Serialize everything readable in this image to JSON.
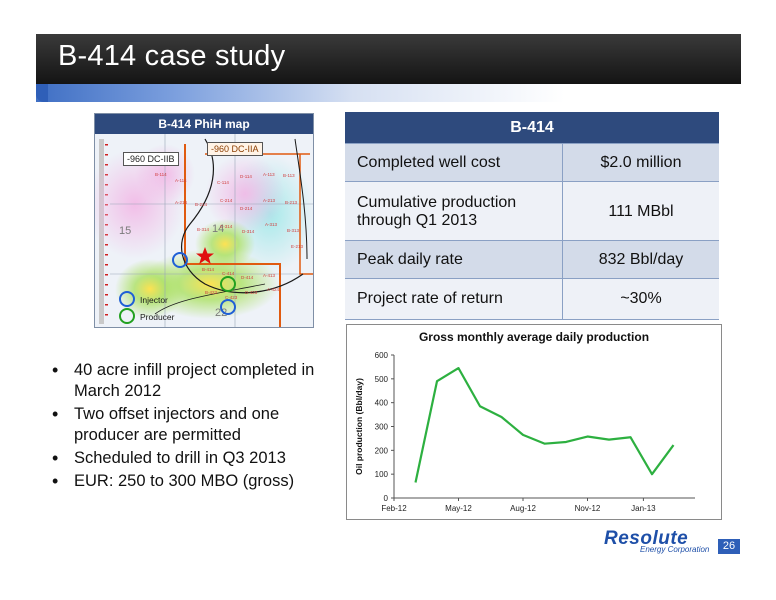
{
  "slide": {
    "title": "B-414 case study",
    "page_number": "26"
  },
  "map": {
    "title": "B-414 PhiH map",
    "label_iib": "-960 DC-IIB",
    "label_iia": "-960 DC-IIA",
    "legend_injector": "Injector",
    "legend_producer": "Producer",
    "section_15": "15",
    "section_14": "14",
    "section_22": "22",
    "wells": [
      "B-114",
      "A-114",
      "C-114",
      "D-114",
      "A-113",
      "B-113",
      "A-214",
      "B-214",
      "C-214",
      "D-214",
      "A-213",
      "B-213",
      "B-314",
      "C-314",
      "D-314",
      "A-313",
      "B-313",
      "B-414",
      "C-414",
      "D-414",
      "A-413",
      "B-423",
      "C-423",
      "D-423",
      "A-424",
      "E-213"
    ],
    "colors": {
      "injector": "#1f5fd6",
      "producer": "#22a020",
      "star": "#e01010",
      "boundary": "#e05a10"
    }
  },
  "table": {
    "header": "B-414",
    "rows": [
      {
        "label": "Completed well cost",
        "value": "$2.0 million"
      },
      {
        "label": "Cumulative production through Q1 2013",
        "value": "111 MBbl"
      },
      {
        "label": "Peak daily rate",
        "value": "832 Bbl/day"
      },
      {
        "label": "Project rate of return",
        "value": "~30%"
      }
    ]
  },
  "bullets": [
    "40 acre infill project completed in March 2012",
    "Two offset injectors and one producer are permitted",
    "Scheduled to drill in Q3 2013",
    "EUR:  250 to 300 MBO (gross)"
  ],
  "chart_data": {
    "type": "line",
    "title": "Gross monthly average daily production",
    "ylabel": "Oil production (Bbl/day)",
    "xlabel": "",
    "ylim": [
      0,
      600
    ],
    "yticks": [
      0,
      100,
      200,
      300,
      400,
      500,
      600
    ],
    "xticks": [
      "Feb-12",
      "May-12",
      "Aug-12",
      "Nov-12",
      "Jan-13"
    ],
    "x": [
      "Mar-12",
      "Apr-12",
      "May-12",
      "Jun-12",
      "Jul-12",
      "Aug-12",
      "Sep-12",
      "Oct-12",
      "Nov-12",
      "Dec-12",
      "Jan-13",
      "Feb-13",
      "Mar-13"
    ],
    "series": [
      {
        "values": [
          65,
          490,
          545,
          385,
          340,
          265,
          228,
          235,
          258,
          245,
          255,
          100,
          222
        ]
      }
    ],
    "line_color": "#2db040",
    "grid": false
  },
  "logo": {
    "name": "Resolute",
    "subtitle": "Energy Corporation"
  }
}
